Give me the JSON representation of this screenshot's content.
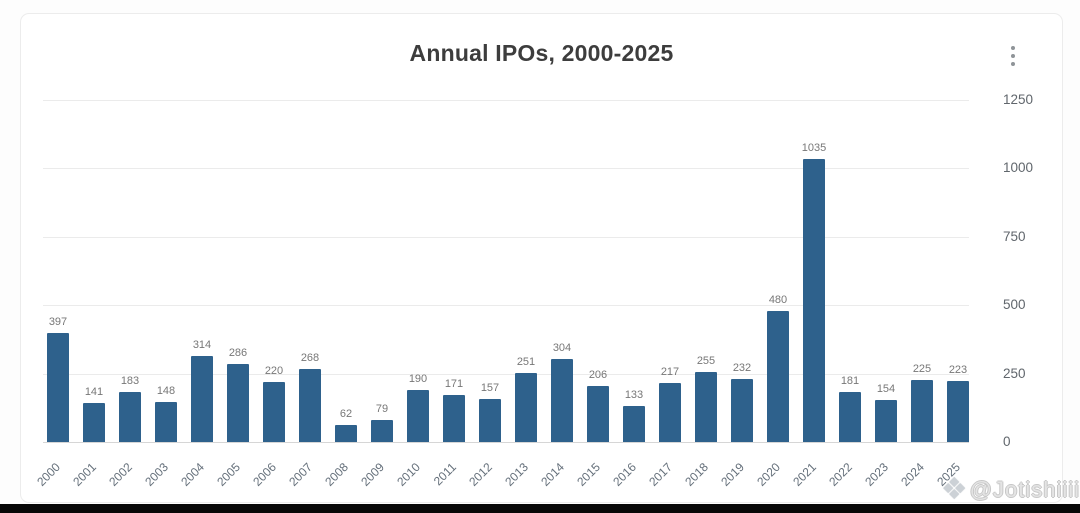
{
  "header": {
    "title": "Annual IPOs, 2000-2025"
  },
  "menu": {
    "icon": "kebab-menu-icon"
  },
  "watermark": {
    "icon": "diamond-logo-icon",
    "icon_glyph": "❖",
    "text": "@Jotishiiii"
  },
  "colors": {
    "bar": "#2e618c",
    "grid": "#ebebeb",
    "title_text": "#3d3d3d",
    "value_label": "#777777",
    "axis_tick": "#60666c",
    "bottom_strip": "#070707"
  },
  "chart_data": {
    "type": "bar",
    "title": "Annual IPOs, 2000-2025",
    "categories": [
      "2000",
      "2001",
      "2002",
      "2003",
      "2004",
      "2005",
      "2006",
      "2007",
      "2008",
      "2009",
      "2010",
      "2011",
      "2012",
      "2013",
      "2014",
      "2015",
      "2016",
      "2017",
      "2018",
      "2019",
      "2020",
      "2021",
      "2022",
      "2023",
      "2024",
      "2025"
    ],
    "values": [
      397,
      141,
      183,
      148,
      314,
      286,
      220,
      268,
      62,
      79,
      190,
      171,
      157,
      251,
      304,
      206,
      133,
      217,
      255,
      232,
      480,
      1035,
      181,
      154,
      225,
      223
    ],
    "xlabel": "",
    "ylabel": "",
    "ylim": [
      0,
      1250
    ],
    "yticks": [
      0,
      250,
      500,
      750,
      1000,
      1250
    ],
    "ytick_side": "right",
    "grid": true,
    "value_labels": true,
    "legend": "none",
    "bar_color": "#2e618c"
  }
}
